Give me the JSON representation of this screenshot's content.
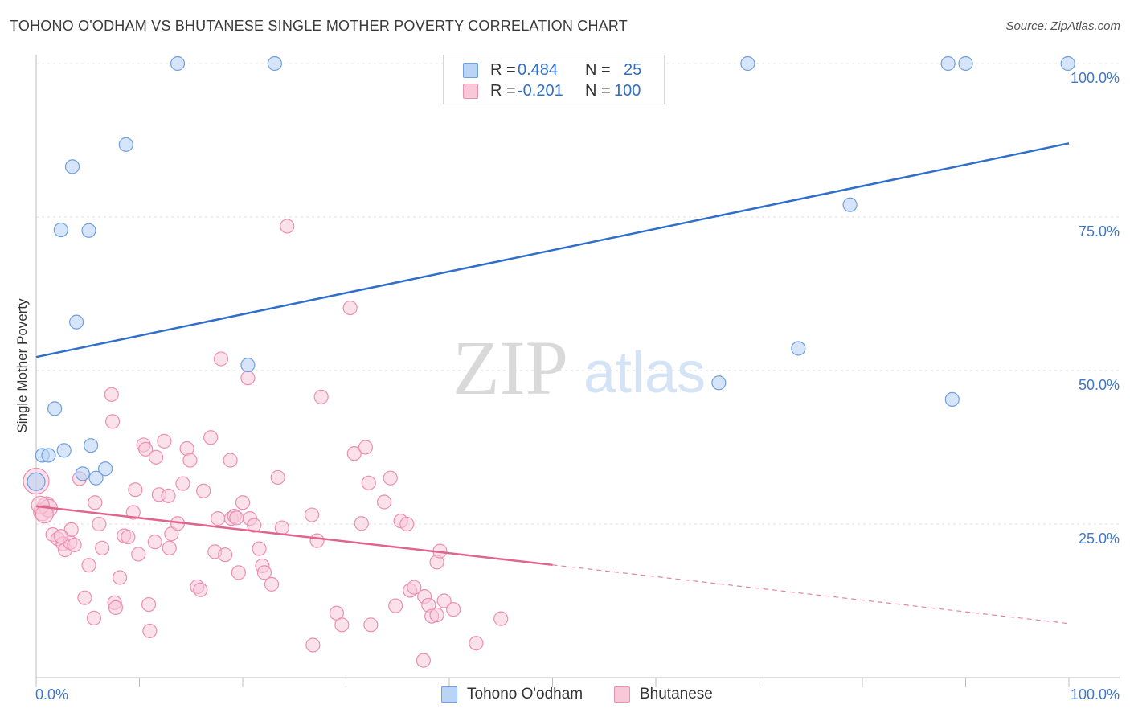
{
  "header": {
    "title": "TOHONO O'ODHAM VS BHUTANESE SINGLE MOTHER POVERTY CORRELATION CHART",
    "source": "Source: ZipAtlas.com"
  },
  "watermark": {
    "zip": "ZIP",
    "atlas": "atlas"
  },
  "legend": {
    "r_label": "R =",
    "n_label": "N =",
    "series": [
      {
        "name": "Tohono O'odham",
        "r": "0.484",
        "n": "25"
      },
      {
        "name": "Bhutanese",
        "r": "-0.201",
        "n": "100"
      }
    ]
  },
  "colors": {
    "tohono_fill": "#bad4f5",
    "tohono_stroke": "#6e9fe0",
    "tohono_line": "#2f6fca",
    "bhutanese_fill": "#f8c8d8",
    "bhutanese_stroke": "#ec8fb0",
    "bhutanese_line": "#e0648c",
    "axis_label": "#3f77c8",
    "grid": "#dcdcdc"
  },
  "chart_data": {
    "type": "scatter",
    "title": "TOHONO O'ODHAM VS BHUTANESE SINGLE MOTHER POVERTY CORRELATION CHART",
    "xlabel": "",
    "ylabel": "Single Mother Poverty",
    "xlim": [
      0,
      100
    ],
    "ylim": [
      0,
      100
    ],
    "x_tick_labels": [
      "0.0%",
      "100.0%"
    ],
    "y_ticks": [
      {
        "value": 100,
        "label": "100.0%"
      },
      {
        "value": 75,
        "label": "75.0%"
      },
      {
        "value": 50,
        "label": "50.0%"
      },
      {
        "value": 25,
        "label": "25.0%"
      }
    ],
    "legend_position": "top-center",
    "series": [
      {
        "name": "Tohono O'odham",
        "r": 0.484,
        "n": 25,
        "trend": {
          "x0": 0,
          "y0": 52.2,
          "x1": 100,
          "y1": 87.0,
          "solid_until": 100
        },
        "points": [
          [
            13.7,
            100
          ],
          [
            23.1,
            100
          ],
          [
            68.9,
            100
          ],
          [
            88.3,
            100
          ],
          [
            90.0,
            100
          ],
          [
            99.9,
            100
          ],
          [
            8.7,
            86.8
          ],
          [
            3.5,
            83.2
          ],
          [
            2.4,
            72.9
          ],
          [
            5.1,
            72.8
          ],
          [
            78.8,
            77.0
          ],
          [
            3.9,
            57.9
          ],
          [
            20.5,
            50.9
          ],
          [
            73.8,
            53.6
          ],
          [
            66.1,
            48.0
          ],
          [
            88.7,
            45.3
          ],
          [
            1.8,
            43.8
          ],
          [
            0.6,
            36.2
          ],
          [
            1.2,
            36.2
          ],
          [
            2.7,
            37.0
          ],
          [
            5.3,
            37.8
          ],
          [
            4.5,
            33.2
          ],
          [
            6.7,
            34.0
          ],
          [
            5.8,
            32.5
          ],
          [
            0.0,
            31.9
          ]
        ]
      },
      {
        "name": "Bhutanese",
        "r": -0.201,
        "n": 100,
        "trend": {
          "x0": 0,
          "y0": 27.9,
          "x1": 100,
          "y1": 8.8,
          "solid_until": 50
        },
        "points": [
          [
            0.0,
            32.0
          ],
          [
            0.6,
            27.0
          ],
          [
            1.0,
            28.0
          ],
          [
            1.6,
            23.3
          ],
          [
            2.1,
            22.6
          ],
          [
            2.6,
            21.8
          ],
          [
            2.8,
            20.8
          ],
          [
            3.3,
            22.0
          ],
          [
            3.4,
            24.1
          ],
          [
            3.7,
            21.6
          ],
          [
            4.7,
            13.0
          ],
          [
            5.1,
            18.3
          ],
          [
            5.6,
            9.7
          ],
          [
            6.1,
            25.0
          ],
          [
            6.4,
            21.1
          ],
          [
            7.6,
            12.2
          ],
          [
            7.7,
            11.4
          ],
          [
            8.1,
            16.3
          ],
          [
            8.5,
            23.1
          ],
          [
            8.9,
            22.9
          ],
          [
            9.4,
            26.9
          ],
          [
            9.6,
            30.6
          ],
          [
            9.9,
            20.1
          ],
          [
            10.4,
            37.9
          ],
          [
            10.6,
            37.2
          ],
          [
            10.9,
            11.9
          ],
          [
            11.0,
            7.6
          ],
          [
            11.5,
            22.1
          ],
          [
            11.6,
            35.9
          ],
          [
            11.9,
            29.8
          ],
          [
            12.4,
            38.5
          ],
          [
            12.8,
            29.6
          ],
          [
            12.9,
            21.1
          ],
          [
            13.1,
            23.4
          ],
          [
            13.7,
            25.1
          ],
          [
            14.2,
            31.6
          ],
          [
            14.6,
            37.3
          ],
          [
            14.9,
            35.4
          ],
          [
            15.6,
            14.8
          ],
          [
            15.9,
            14.3
          ],
          [
            16.2,
            30.4
          ],
          [
            16.9,
            39.1
          ],
          [
            17.3,
            20.5
          ],
          [
            17.6,
            25.9
          ],
          [
            18.3,
            20.0
          ],
          [
            18.8,
            35.4
          ],
          [
            18.9,
            25.9
          ],
          [
            19.2,
            26.3
          ],
          [
            19.4,
            26.0
          ],
          [
            19.6,
            17.1
          ],
          [
            20.0,
            28.5
          ],
          [
            20.5,
            48.8
          ],
          [
            20.7,
            25.9
          ],
          [
            21.1,
            24.8
          ],
          [
            21.6,
            21.0
          ],
          [
            21.9,
            18.2
          ],
          [
            22.1,
            17.1
          ],
          [
            22.8,
            15.2
          ],
          [
            23.4,
            32.6
          ],
          [
            23.8,
            24.4
          ],
          [
            24.3,
            73.5
          ],
          [
            26.8,
            5.3
          ],
          [
            26.7,
            26.5
          ],
          [
            27.2,
            22.3
          ],
          [
            27.6,
            45.7
          ],
          [
            29.1,
            10.5
          ],
          [
            29.6,
            8.6
          ],
          [
            30.4,
            60.2
          ],
          [
            30.8,
            36.5
          ],
          [
            31.5,
            25.1
          ],
          [
            31.9,
            37.5
          ],
          [
            32.2,
            31.7
          ],
          [
            32.4,
            8.6
          ],
          [
            33.7,
            28.6
          ],
          [
            34.3,
            32.5
          ],
          [
            34.8,
            11.7
          ],
          [
            35.3,
            25.5
          ],
          [
            35.9,
            25.0
          ],
          [
            36.2,
            14.2
          ],
          [
            36.6,
            14.7
          ],
          [
            37.5,
            2.8
          ],
          [
            37.6,
            13.2
          ],
          [
            38.0,
            11.8
          ],
          [
            38.3,
            10.0
          ],
          [
            38.8,
            10.2
          ],
          [
            38.8,
            18.8
          ],
          [
            39.1,
            20.6
          ],
          [
            39.5,
            12.5
          ],
          [
            40.4,
            11.1
          ],
          [
            42.6,
            5.6
          ],
          [
            45.0,
            9.6
          ],
          [
            7.3,
            46.1
          ],
          [
            7.4,
            41.7
          ],
          [
            17.9,
            51.9
          ],
          [
            4.2,
            32.4
          ],
          [
            5.7,
            28.5
          ],
          [
            1.2,
            27.6
          ],
          [
            2.4,
            23.0
          ],
          [
            0.4,
            28.1
          ],
          [
            0.8,
            26.6
          ]
        ]
      }
    ]
  }
}
